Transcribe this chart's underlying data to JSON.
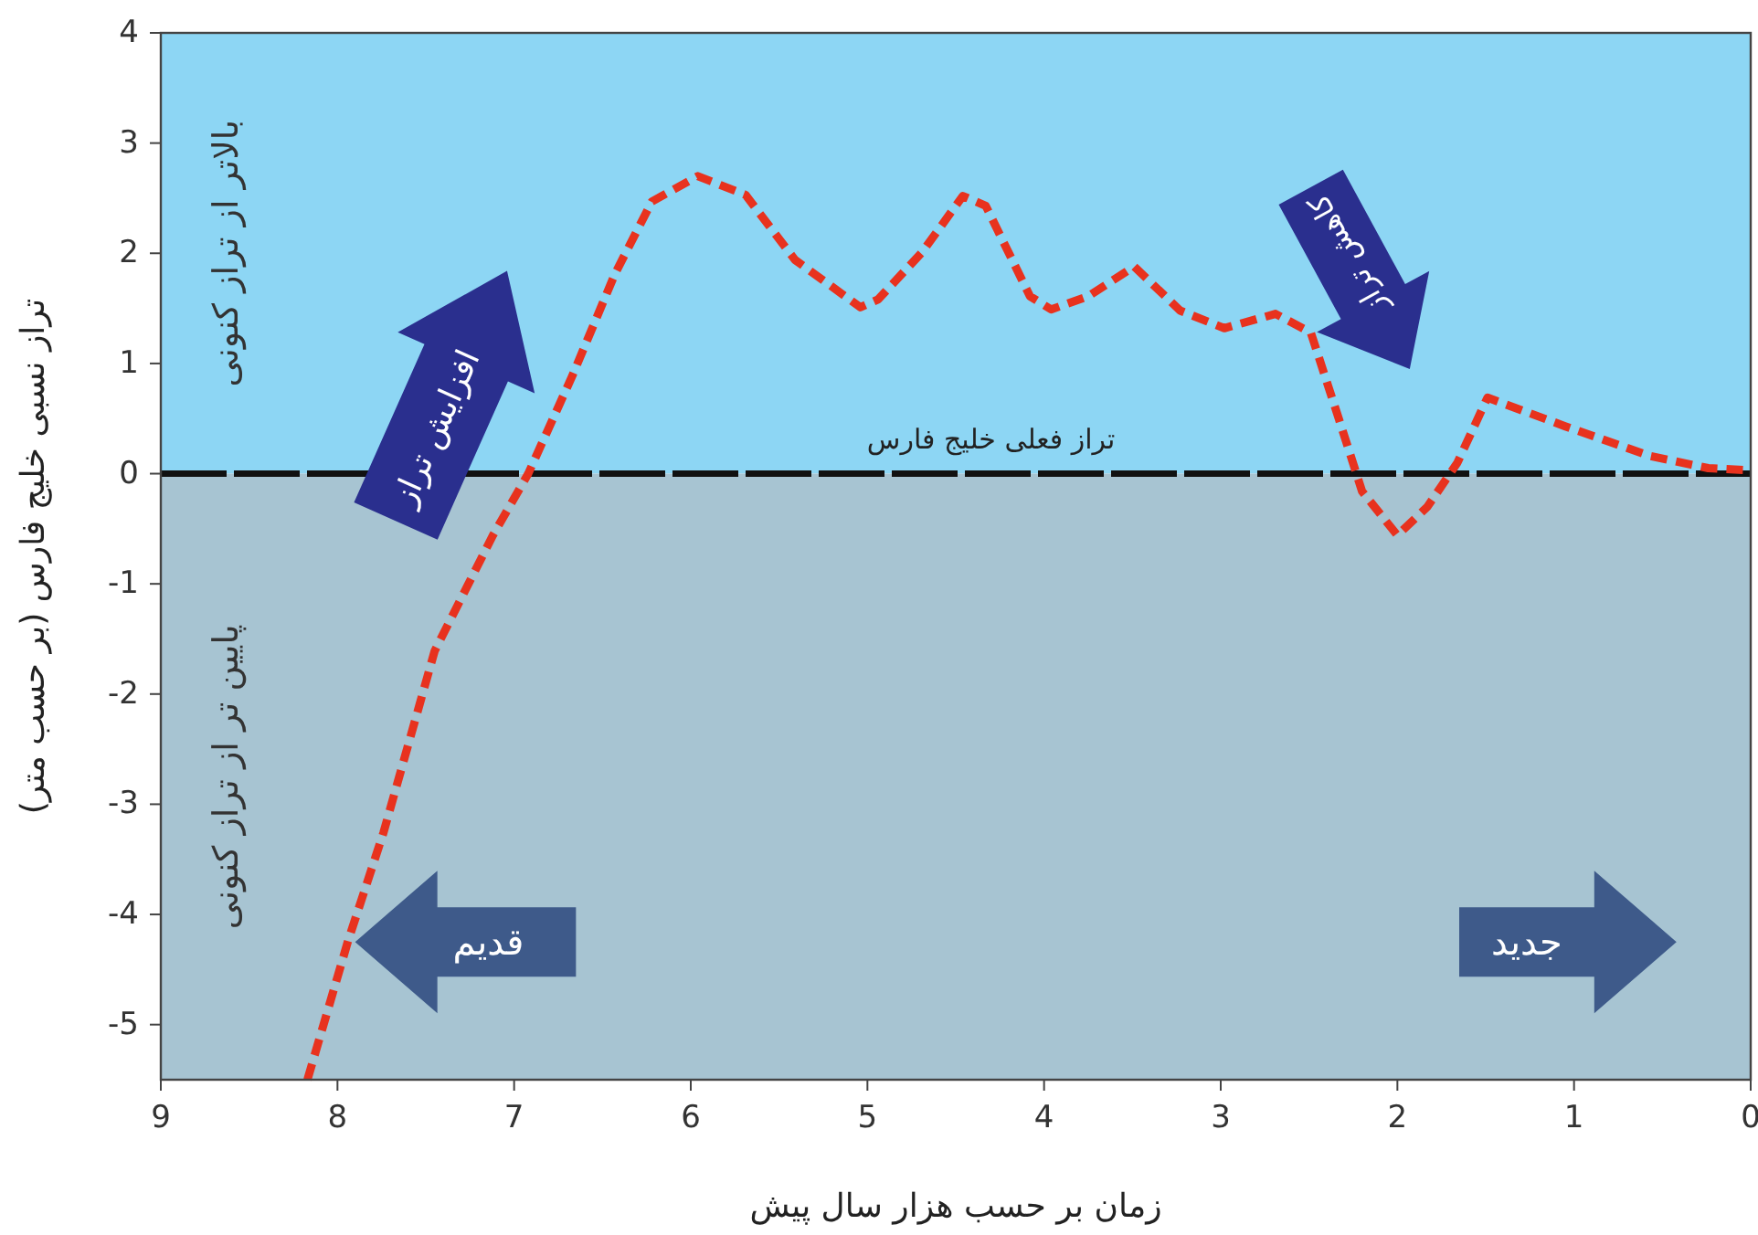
{
  "chart_data": {
    "type": "line",
    "xlabel": "زمان بر حسب هزار سال پیش",
    "ylabel": "تراز نسبی خلیج فارس (بر حسب متر)",
    "xlim": [
      9,
      0
    ],
    "xticks": [
      9,
      8,
      7,
      6,
      5,
      4,
      3,
      2,
      1,
      0
    ],
    "ylim": [
      -5.5,
      4
    ],
    "yticks": [
      -5,
      -4,
      -3,
      -2,
      -1,
      0,
      1,
      2,
      3,
      4
    ],
    "grid": false,
    "line_style": "dashed",
    "marker": "none",
    "series": [
      {
        "color": "#e8321e",
        "x": [
          8.17,
          7.94,
          7.74,
          7.45,
          7.12,
          6.92,
          6.67,
          6.43,
          6.22,
          5.96,
          5.69,
          5.41,
          5.04,
          4.94,
          4.69,
          4.46,
          4.33,
          4.08,
          3.96,
          3.75,
          3.49,
          3.23,
          2.98,
          2.69,
          2.49,
          2.33,
          2.2,
          2.0,
          1.83,
          1.66,
          1.49,
          1.05,
          0.57,
          0.24,
          0
        ],
        "values": [
          -5.5,
          -4.24,
          -3.26,
          -1.61,
          -0.56,
          0,
          0.89,
          1.81,
          2.47,
          2.7,
          2.53,
          1.94,
          1.51,
          1.58,
          2.01,
          2.52,
          2.43,
          1.61,
          1.49,
          1.61,
          1.88,
          1.48,
          1.32,
          1.45,
          1.28,
          0.49,
          -0.16,
          -0.56,
          -0.3,
          0.1,
          0.69,
          0.43,
          0.16,
          0.05,
          0.03
        ]
      }
    ],
    "bands": [
      {
        "axis": "y",
        "from": 0,
        "to": 4,
        "color": "#8dd6f4",
        "label": "بالاتر از تراز کنونی"
      },
      {
        "axis": "y",
        "from": -5.5,
        "to": 0,
        "color": "#a7c4d2",
        "label": "پایین تر از تراز کنونی"
      }
    ],
    "ref_lines": [
      {
        "axis": "y",
        "value": 0,
        "color": "#111111",
        "line_style": "dashed",
        "label": "تراز فعلی خلیج فارس"
      }
    ],
    "annotations": [
      "افزایش تراز",
      "کاهش تراز",
      "قدیم",
      "جدید"
    ]
  }
}
